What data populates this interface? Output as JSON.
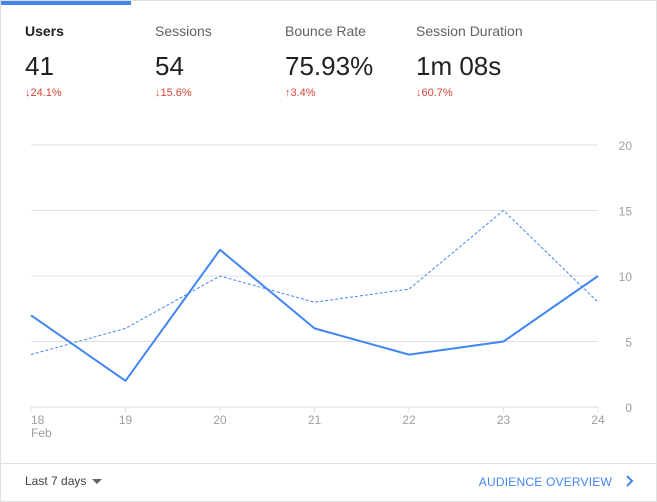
{
  "metrics": [
    {
      "label": "Users",
      "value": "41",
      "change": "24.1%",
      "direction": "down",
      "active": true
    },
    {
      "label": "Sessions",
      "value": "54",
      "change": "15.6%",
      "direction": "down",
      "active": false
    },
    {
      "label": "Bounce Rate",
      "value": "75.93%",
      "change": "3.4%",
      "direction": "up",
      "active": false
    },
    {
      "label": "Session Duration",
      "value": "1m 08s",
      "change": "60.7%",
      "direction": "down",
      "active": false
    }
  ],
  "colors": {
    "accent": "#4285f4",
    "negative": "#db4437",
    "grid": "#e0e0e0",
    "tick": "#9e9e9e"
  },
  "chart_data": {
    "type": "line",
    "x": [
      "18",
      "19",
      "20",
      "21",
      "22",
      "23",
      "24"
    ],
    "x_sublabel": "Feb",
    "ylim": [
      0,
      20
    ],
    "yticks": [
      "0",
      "5",
      "10",
      "15",
      "20"
    ],
    "grid": true,
    "series": [
      {
        "values": [
          7,
          2,
          12,
          6,
          4,
          5,
          10
        ],
        "style": "solid"
      },
      {
        "values": [
          4,
          6,
          10,
          8,
          9,
          15,
          8
        ],
        "style": "dashed"
      }
    ]
  },
  "footer": {
    "range_label": "Last 7 days",
    "link_label": "AUDIENCE OVERVIEW",
    "dropdown_icon": "caret-down-icon",
    "link_icon": "chevron-right-icon"
  }
}
